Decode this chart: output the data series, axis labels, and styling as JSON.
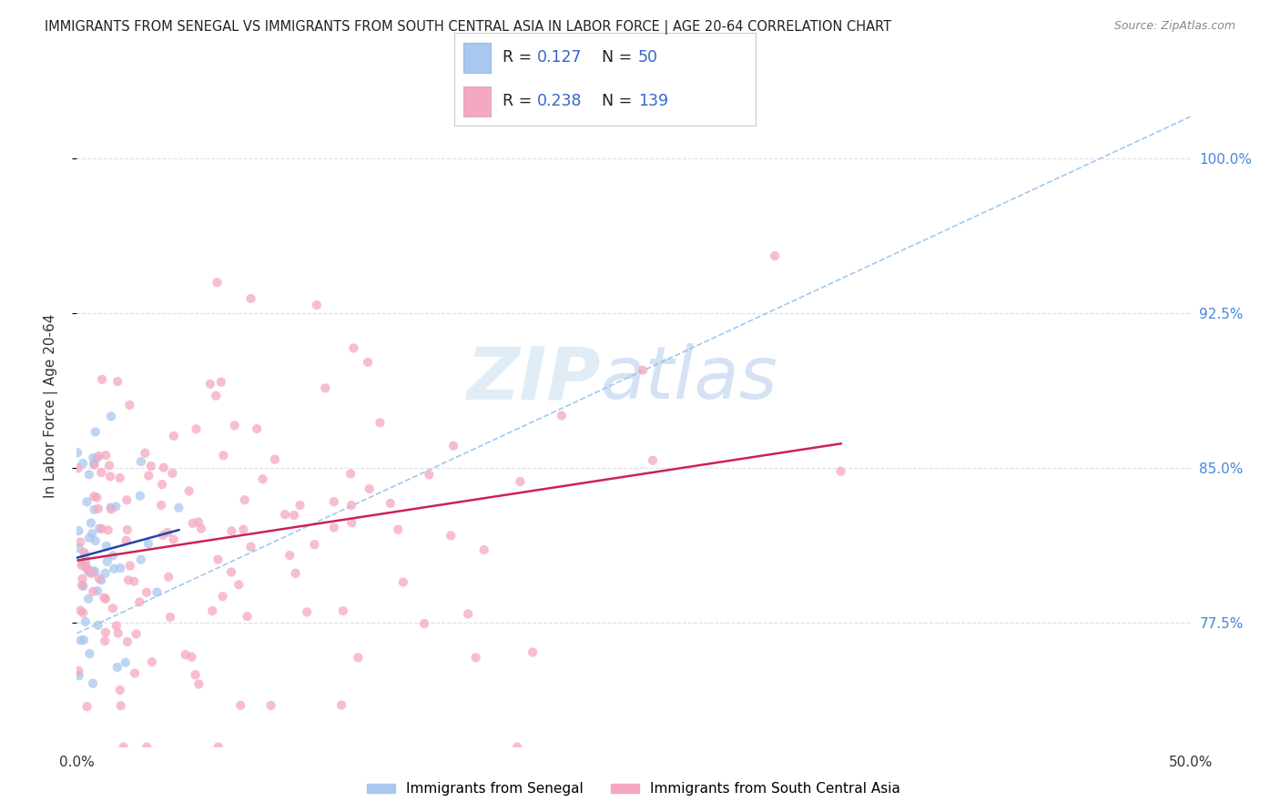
{
  "title": "IMMIGRANTS FROM SENEGAL VS IMMIGRANTS FROM SOUTH CENTRAL ASIA IN LABOR FORCE | AGE 20-64 CORRELATION CHART",
  "source": "Source: ZipAtlas.com",
  "ylabel": "In Labor Force | Age 20-64",
  "legend_label1": "Immigrants from Senegal",
  "legend_label2": "Immigrants from South Central Asia",
  "r1": "0.127",
  "n1": "50",
  "r2": "0.238",
  "n2": "139",
  "color1": "#a8c8f0",
  "color2": "#f5a8c0",
  "trendline1_color": "#2244aa",
  "trendline2_color": "#cc2255",
  "dashed_line_color": "#88bbee",
  "watermark_zip": "ZIP",
  "watermark_atlas": "atlas",
  "yaxis_labels": [
    "77.5%",
    "85.0%",
    "92.5%",
    "100.0%"
  ],
  "yaxis_values": [
    0.775,
    0.85,
    0.925,
    1.0
  ],
  "xlim": [
    0.0,
    0.5
  ],
  "ylim": [
    0.715,
    1.045
  ],
  "background_color": "#ffffff",
  "grid_color": "#e0e0e0",
  "title_fontsize": 10.5,
  "source_fontsize": 9,
  "scatter_size": 55,
  "scatter_alpha": 0.75
}
